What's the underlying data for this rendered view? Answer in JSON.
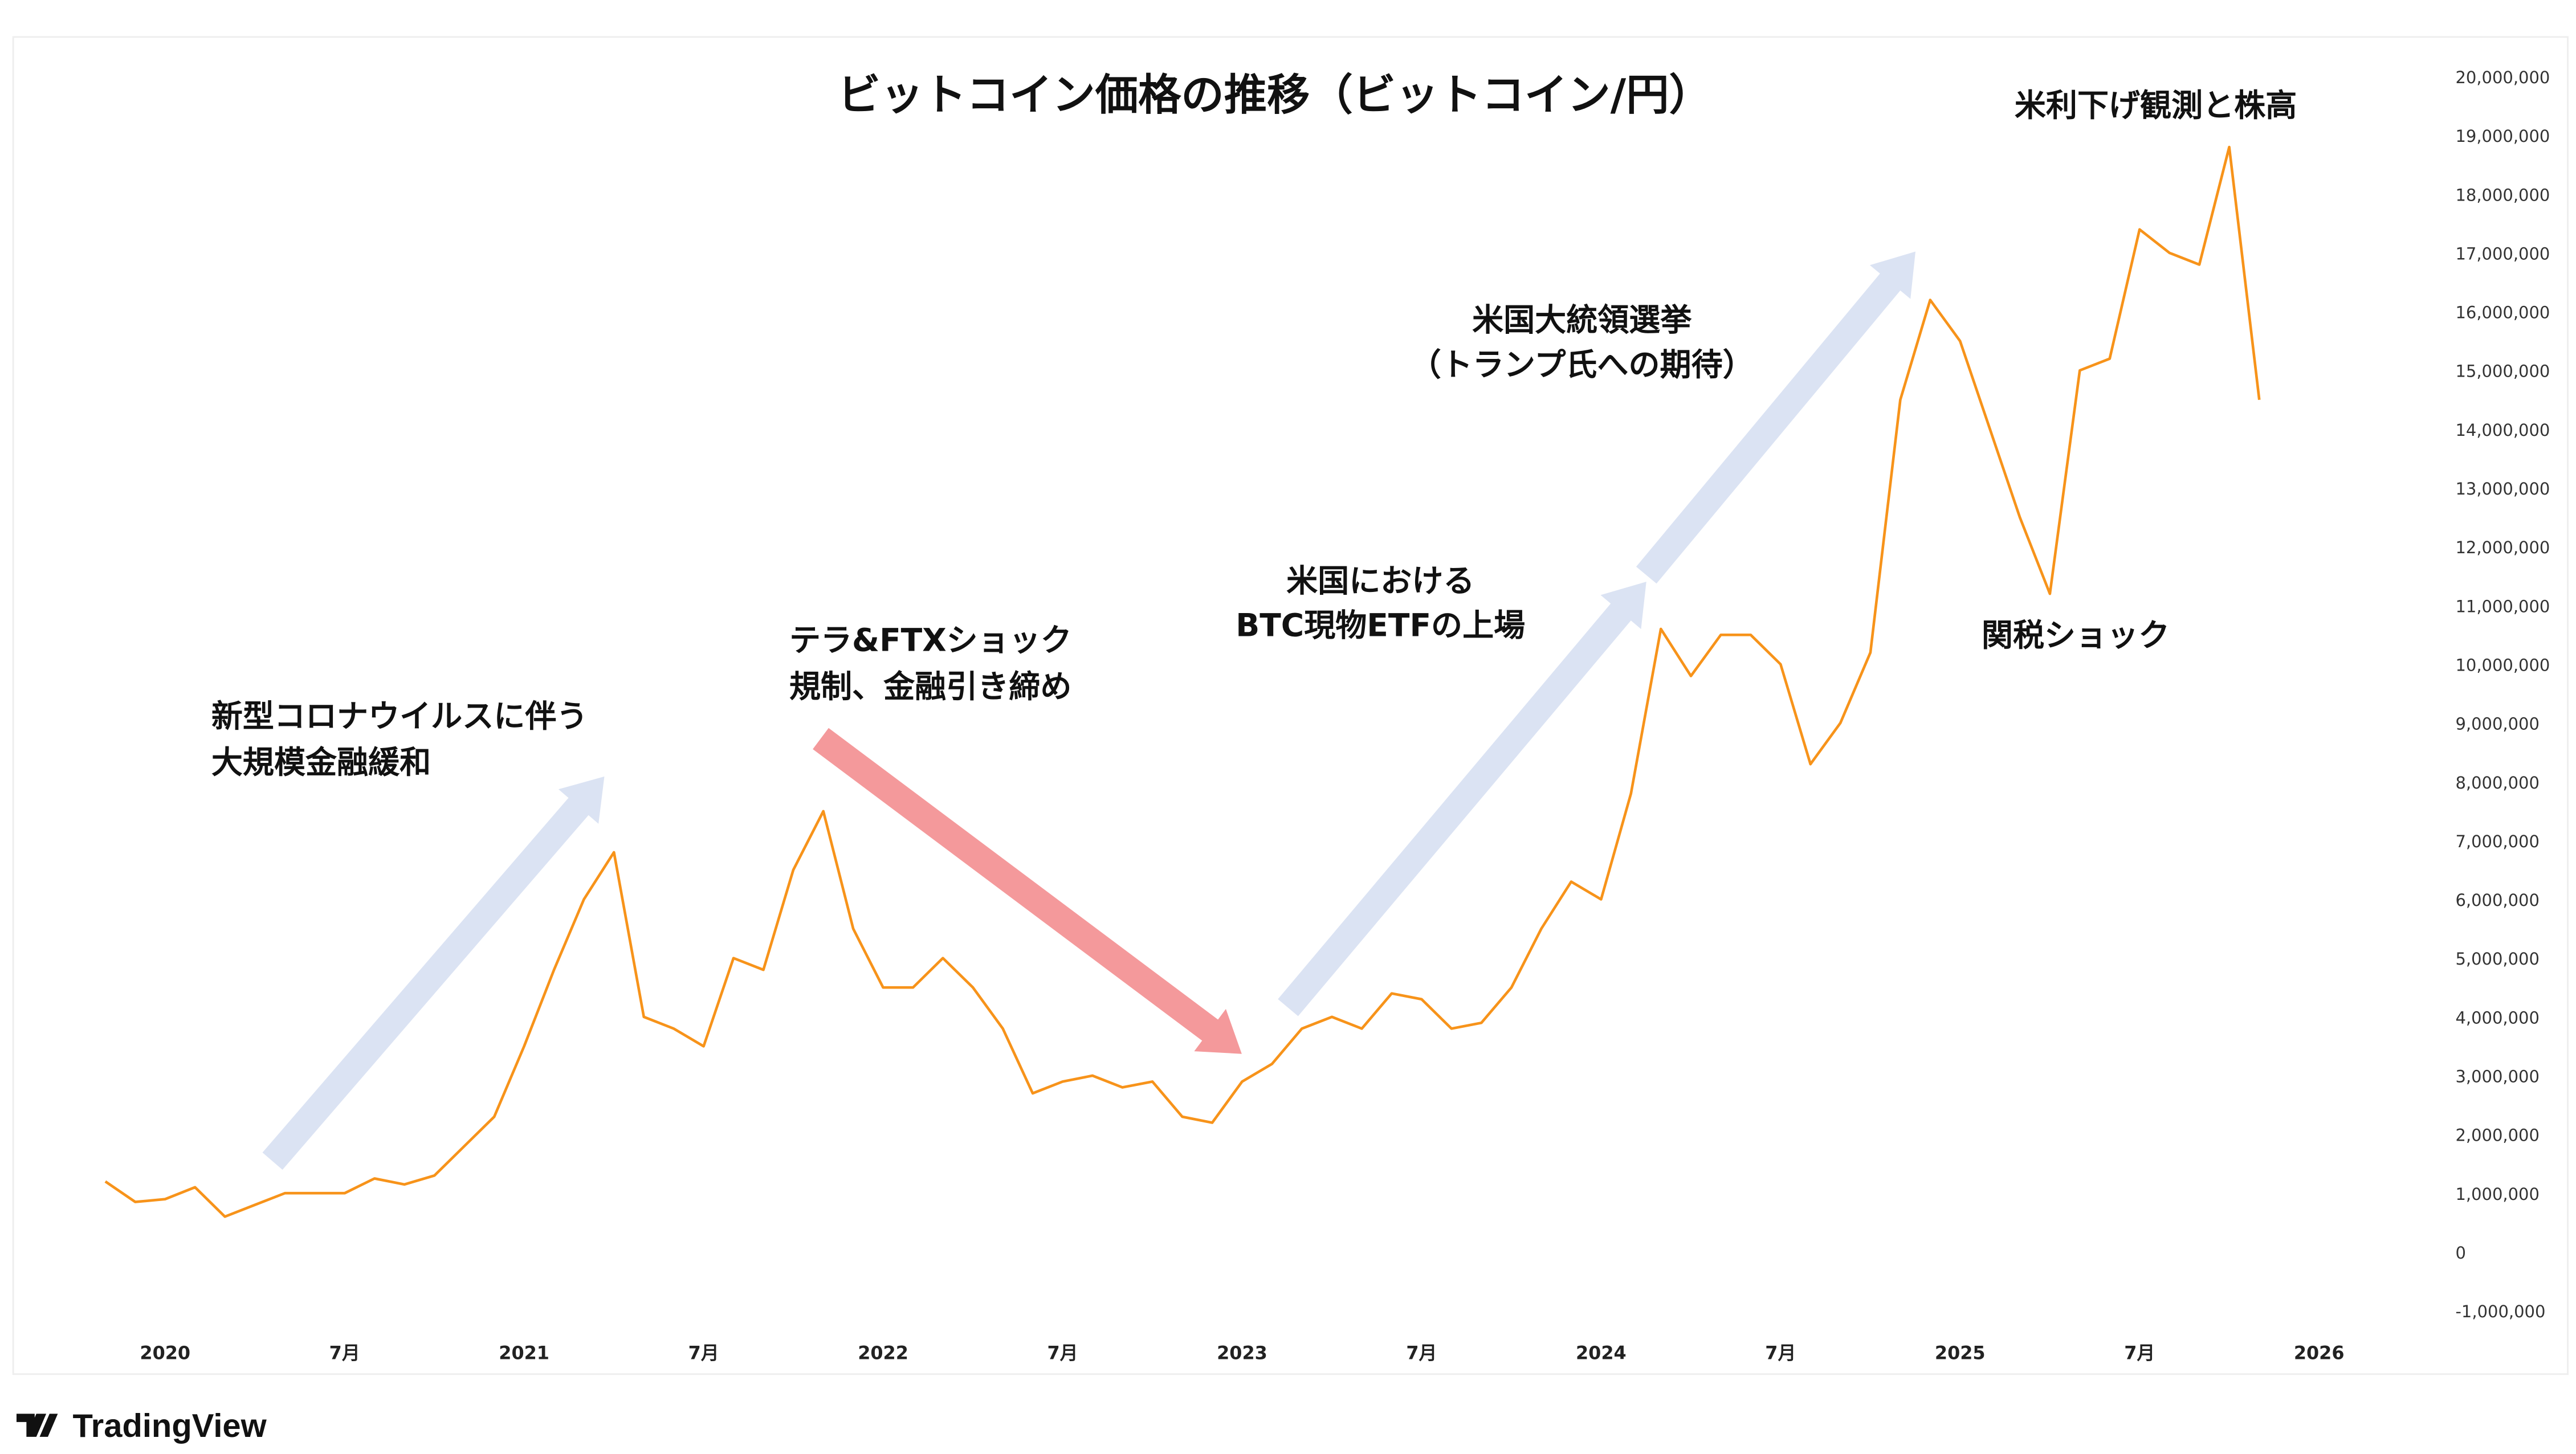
{
  "chart_data": {
    "type": "line",
    "title": "ビットコイン価格の推移（ビットコイン/円）",
    "xlabel": "",
    "ylabel": "",
    "ylim": [
      -1000000,
      20000000
    ],
    "grid": false,
    "x_ticks": [
      "2020",
      "7月",
      "2021",
      "7月",
      "2022",
      "7月",
      "2023",
      "7月",
      "2024",
      "7月",
      "2025",
      "7月",
      "2026"
    ],
    "y_ticks": [
      "20,000,000",
      "19,000,000",
      "18,000,000",
      "17,000,000",
      "16,000,000",
      "15,000,000",
      "14,000,000",
      "13,000,000",
      "12,000,000",
      "11,000,000",
      "10,000,000",
      "9,000,000",
      "8,000,000",
      "7,000,000",
      "6,000,000",
      "5,000,000",
      "4,000,000",
      "3,000,000",
      "2,000,000",
      "1,000,000",
      "0",
      "-1,000,000"
    ],
    "series": [
      {
        "color": "#f7931a",
        "points": [
          [
            "2019-11",
            1200000
          ],
          [
            "2019-12",
            850000
          ],
          [
            "2020-01",
            900000
          ],
          [
            "2020-02",
            1100000
          ],
          [
            "2020-03",
            600000
          ],
          [
            "2020-04",
            800000
          ],
          [
            "2020-05",
            1000000
          ],
          [
            "2020-06",
            1000000
          ],
          [
            "2020-07",
            1000000
          ],
          [
            "2020-08",
            1250000
          ],
          [
            "2020-09",
            1150000
          ],
          [
            "2020-10",
            1300000
          ],
          [
            "2020-11",
            1800000
          ],
          [
            "2020-12",
            2300000
          ],
          [
            "2021-01",
            3500000
          ],
          [
            "2021-02",
            4800000
          ],
          [
            "2021-03",
            6000000
          ],
          [
            "2021-04",
            6800000
          ],
          [
            "2021-05",
            4000000
          ],
          [
            "2021-06",
            3800000
          ],
          [
            "2021-07",
            3500000
          ],
          [
            "2021-08",
            5000000
          ],
          [
            "2021-09",
            4800000
          ],
          [
            "2021-10",
            6500000
          ],
          [
            "2021-11",
            7500000
          ],
          [
            "2021-12",
            5500000
          ],
          [
            "2022-01",
            4500000
          ],
          [
            "2022-02",
            4500000
          ],
          [
            "2022-03",
            5000000
          ],
          [
            "2022-04",
            4500000
          ],
          [
            "2022-05",
            3800000
          ],
          [
            "2022-06",
            2700000
          ],
          [
            "2022-07",
            2900000
          ],
          [
            "2022-08",
            3000000
          ],
          [
            "2022-09",
            2800000
          ],
          [
            "2022-10",
            2900000
          ],
          [
            "2022-11",
            2300000
          ],
          [
            "2022-12",
            2200000
          ],
          [
            "2023-01",
            2900000
          ],
          [
            "2023-02",
            3200000
          ],
          [
            "2023-03",
            3800000
          ],
          [
            "2023-04",
            4000000
          ],
          [
            "2023-05",
            3800000
          ],
          [
            "2023-06",
            4400000
          ],
          [
            "2023-07",
            4300000
          ],
          [
            "2023-08",
            3800000
          ],
          [
            "2023-09",
            3900000
          ],
          [
            "2023-10",
            4500000
          ],
          [
            "2023-11",
            5500000
          ],
          [
            "2023-12",
            6300000
          ],
          [
            "2024-01",
            6000000
          ],
          [
            "2024-02",
            7800000
          ],
          [
            "2024-03",
            10600000
          ],
          [
            "2024-04",
            9800000
          ],
          [
            "2024-05",
            10500000
          ],
          [
            "2024-06",
            10500000
          ],
          [
            "2024-07",
            10000000
          ],
          [
            "2024-08",
            8300000
          ],
          [
            "2024-09",
            9000000
          ],
          [
            "2024-10",
            10200000
          ],
          [
            "2024-11",
            14500000
          ],
          [
            "2024-12",
            16200000
          ],
          [
            "2025-01",
            15500000
          ],
          [
            "2025-02",
            14000000
          ],
          [
            "2025-03",
            12500000
          ],
          [
            "2025-04",
            11200000
          ],
          [
            "2025-05",
            15000000
          ],
          [
            "2025-06",
            15200000
          ],
          [
            "2025-07",
            17400000
          ],
          [
            "2025-08",
            17000000
          ],
          [
            "2025-09",
            16800000
          ],
          [
            "2025-10",
            18800000
          ],
          [
            "2025-11",
            14500000
          ]
        ]
      }
    ],
    "annotations": [
      {
        "lines": [
          "新型コロナウイルスに伴う",
          "大規模金融緩和"
        ]
      },
      {
        "lines": [
          "テラ&FTXショック",
          "規制、金融引き締め"
        ]
      },
      {
        "lines": [
          "米国における",
          "BTC現物ETFの上場"
        ]
      },
      {
        "lines": [
          "米国大統領選挙",
          "（トランプ氏への期待）"
        ]
      },
      {
        "lines": [
          "関税ショック"
        ]
      },
      {
        "lines": [
          "米利下げ観測と株高"
        ]
      }
    ],
    "arrow_colors": {
      "up": "#dbe3f3",
      "down": "#f4999b"
    }
  },
  "branding": {
    "logo": "TradingView"
  }
}
